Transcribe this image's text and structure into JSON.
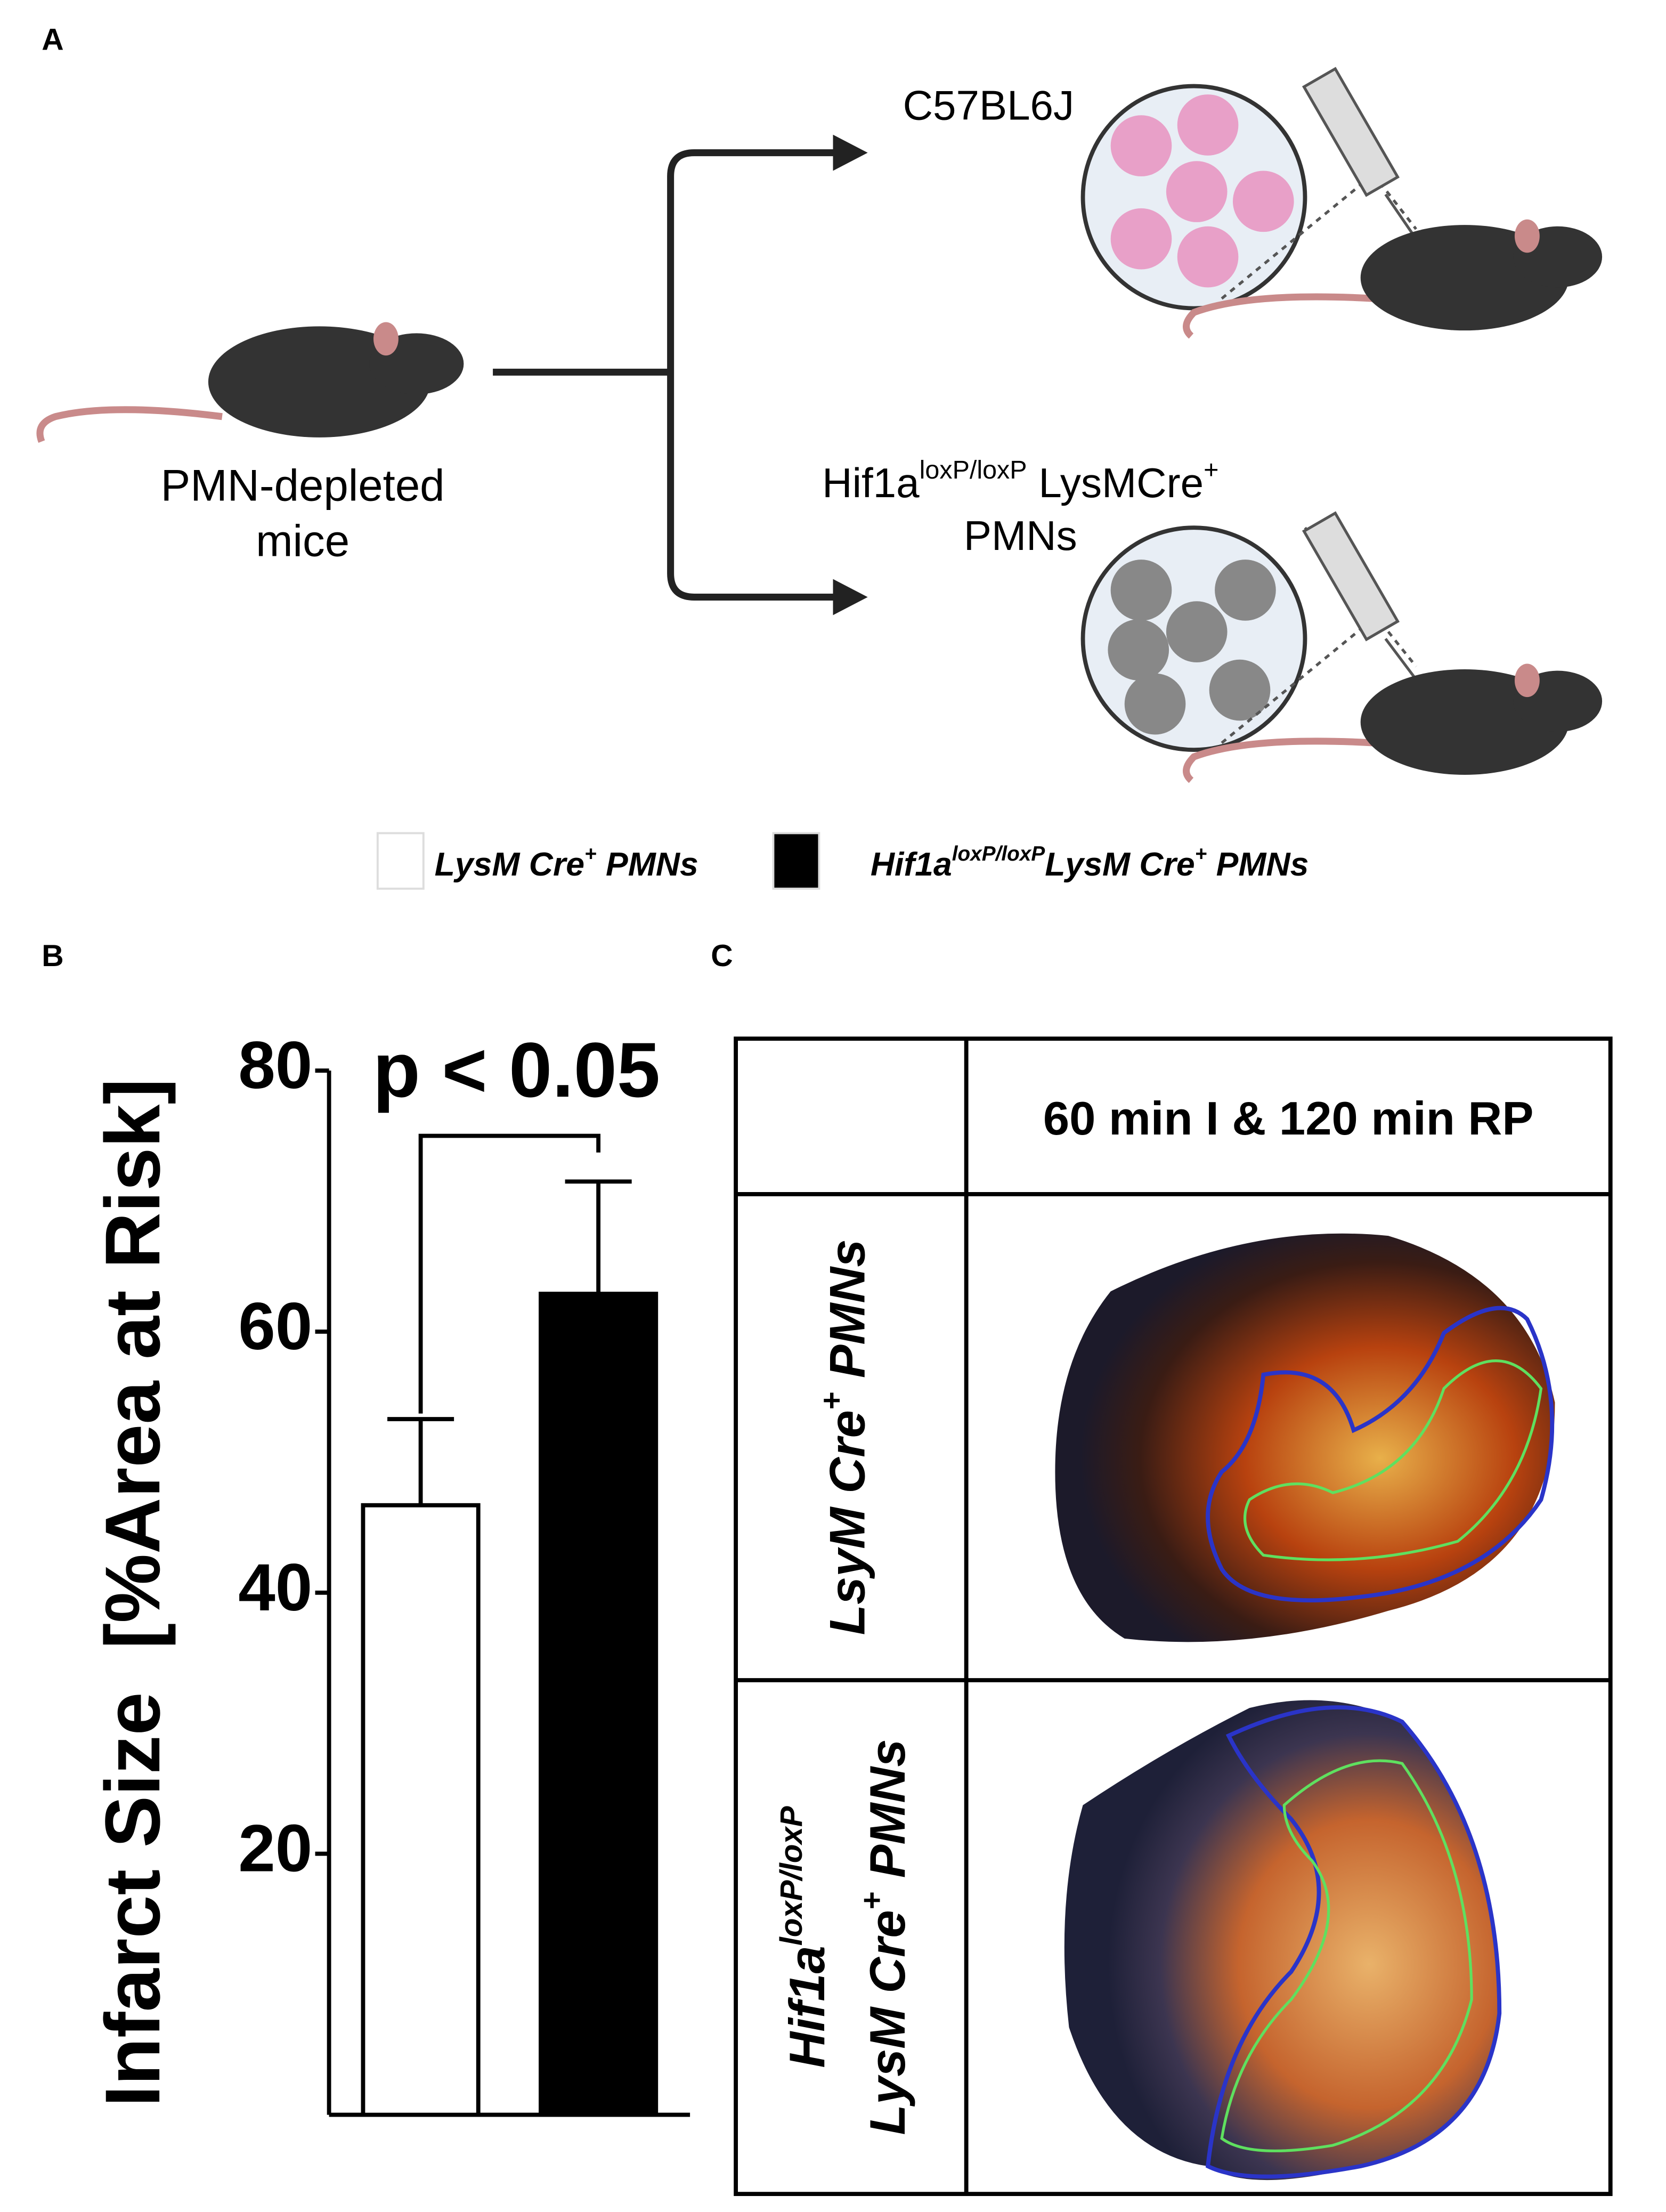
{
  "panel_a": {
    "label": "A",
    "source": [
      "PMN-depleted",
      "mice"
    ],
    "target_1": [
      {
        "t": "C57BL6J"
      }
    ],
    "target_2": [
      [
        {
          "t": "Hif1a"
        },
        {
          "t": "loxP/loxP",
          "sup": true
        },
        {
          "t": " LysMCre"
        },
        {
          "t": "+",
          "sup": true
        }
      ],
      [
        {
          "t": "PMNs"
        }
      ]
    ]
  },
  "panel_b": {
    "label": "B"
  },
  "chart_data": {
    "type": "bar",
    "ylabel": "Infarct Size  [%Area at Risk]",
    "annotation": "p < 0.05",
    "ylim": [
      0,
      80
    ],
    "yticks": [
      20,
      40,
      60,
      80
    ],
    "legend": [
      [
        {
          "t": "LysM Cre"
        },
        {
          "t": "+",
          "sup": true
        },
        {
          "t": " PMNs"
        }
      ],
      [
        {
          "t": "Hif1a"
        },
        {
          "t": "loxP/loxP",
          "sup": true
        },
        {
          "t": "LysM Cre"
        },
        {
          "t": "+",
          "sup": true
        },
        {
          "t": " PMNs"
        }
      ]
    ],
    "series": [
      {
        "color": "#ffffff",
        "values": [
          46.7
        ],
        "errors": [
          6.6
        ]
      },
      {
        "color": "#000000",
        "values": [
          62.9
        ],
        "errors": [
          8.6
        ]
      }
    ]
  },
  "panel_c": {
    "label": "C",
    "column_header": "60 min I & 120 min RP",
    "rows": [
      [
        [
          {
            "t": "LsyM Cre"
          },
          {
            "t": "+",
            "sup": true
          },
          {
            "t": " PMNs"
          }
        ]
      ],
      [
        [
          {
            "t": "Hif1a"
          },
          {
            "t": "loxP/loxP",
            "sup": true
          }
        ],
        [
          {
            "t": "LysM Cre"
          },
          {
            "t": "+",
            "sup": true
          },
          {
            "t": " PMNs"
          }
        ]
      ]
    ]
  }
}
